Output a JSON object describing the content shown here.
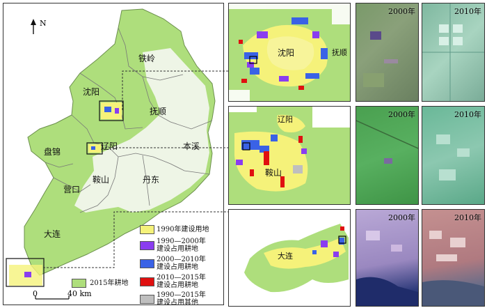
{
  "north_label": "N",
  "scale_bar": {
    "start": "0",
    "end": "40 km"
  },
  "cities": {
    "tieling": "铁岭",
    "shenyang": "沈阳",
    "fushun": "抚顺",
    "liaoyang": "辽阳",
    "benxi": "本溪",
    "panjin": "盘锦",
    "anshan": "鞍山",
    "dandong": "丹东",
    "yingkou": "营口",
    "dalian": "大连"
  },
  "legend": {
    "farmland": "2015年耕地",
    "items": [
      {
        "line1": "1990年建设用地",
        "line2": "",
        "color": "#f5f27a"
      },
      {
        "line1": "1990—2000年",
        "line2": "建设占用耕地",
        "color": "#8a3df0"
      },
      {
        "line1": "2000—2010年",
        "line2": "建设占用耕地",
        "color": "#3a62e6"
      },
      {
        "line1": "2010—2015年",
        "line2": "建设占用耕地",
        "color": "#e01010"
      },
      {
        "line1": "1990—2015年",
        "line2": "建设占用其他",
        "color": "#bfbfbf"
      }
    ]
  },
  "zoom_labels": {
    "shenyang": "沈阳",
    "fushun": "抚顺",
    "liaoyang": "辽阳",
    "anshan": "鞍山",
    "dalian": "大连"
  },
  "satellite": {
    "row1": {
      "y2000": "2000年",
      "y2010": "2010年"
    },
    "row2": {
      "y2000": "2000年",
      "y2010": "2010年"
    },
    "row3": {
      "y2000": "2000年",
      "y2010": "2010年"
    }
  },
  "colors": {
    "farmland": "#aede7c",
    "construction_1990": "#f5f27a",
    "c_1990_2000": "#8a3df0",
    "c_2000_2010": "#3a62e6",
    "c_2010_2015": "#e01010",
    "c_other": "#bfbfbf"
  }
}
